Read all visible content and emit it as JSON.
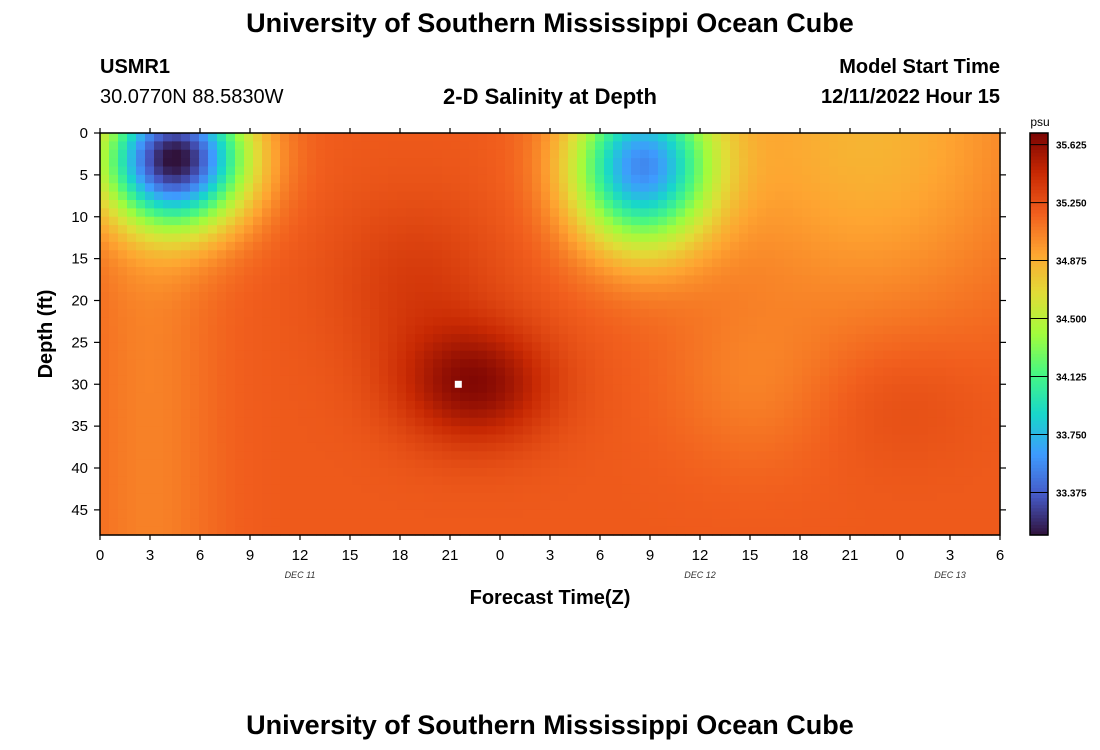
{
  "page": {
    "title": "University of Southern Mississippi Ocean Cube",
    "footer_title": "University of Southern Mississippi Ocean Cube",
    "station_id": "USMR1",
    "station_coords": "30.0770N  88.5830W",
    "subtitle": "2-D Salinity at Depth",
    "start_label": "Model Start Time",
    "start_value": "12/11/2022 Hour 15"
  },
  "chart_data": {
    "type": "heatmap",
    "title": "2-D Salinity at Depth",
    "xlabel": "Forecast Time(Z)",
    "ylabel": "Depth (ft)",
    "x_tick_labels": [
      "0",
      "3",
      "6",
      "9",
      "12",
      "15",
      "18",
      "21",
      "0",
      "3",
      "6",
      "9",
      "12",
      "15",
      "18",
      "21",
      "0",
      "3",
      "6"
    ],
    "x_range_hours": [
      0,
      54
    ],
    "date_labels": [
      {
        "label": "DEC 11",
        "at_hour": 12
      },
      {
        "label": "DEC 12",
        "at_hour": 36
      },
      {
        "label": "DEC 13",
        "at_hour": 51
      }
    ],
    "y_ticks": [
      0,
      5,
      10,
      15,
      20,
      25,
      30,
      35,
      40,
      45
    ],
    "y_range": [
      0,
      48
    ],
    "colorbar": {
      "unit": "psu",
      "labels": [
        "35.625",
        "35.250",
        "34.875",
        "34.500",
        "34.125",
        "33.750",
        "33.375"
      ],
      "range": [
        33.1,
        35.7
      ]
    },
    "marker": {
      "hour": 21.5,
      "depth": 30
    },
    "salinity_features": {
      "background": 35.2,
      "fresh_lenses": [
        {
          "center_hour": 4.5,
          "center_depth": 3,
          "min_value": 33.15
        },
        {
          "center_hour": 32.5,
          "center_depth": 4,
          "min_value": 33.65
        }
      ],
      "salty_core": {
        "center_hour": 22.5,
        "center_depth": 30,
        "max_value": 35.65
      }
    }
  }
}
